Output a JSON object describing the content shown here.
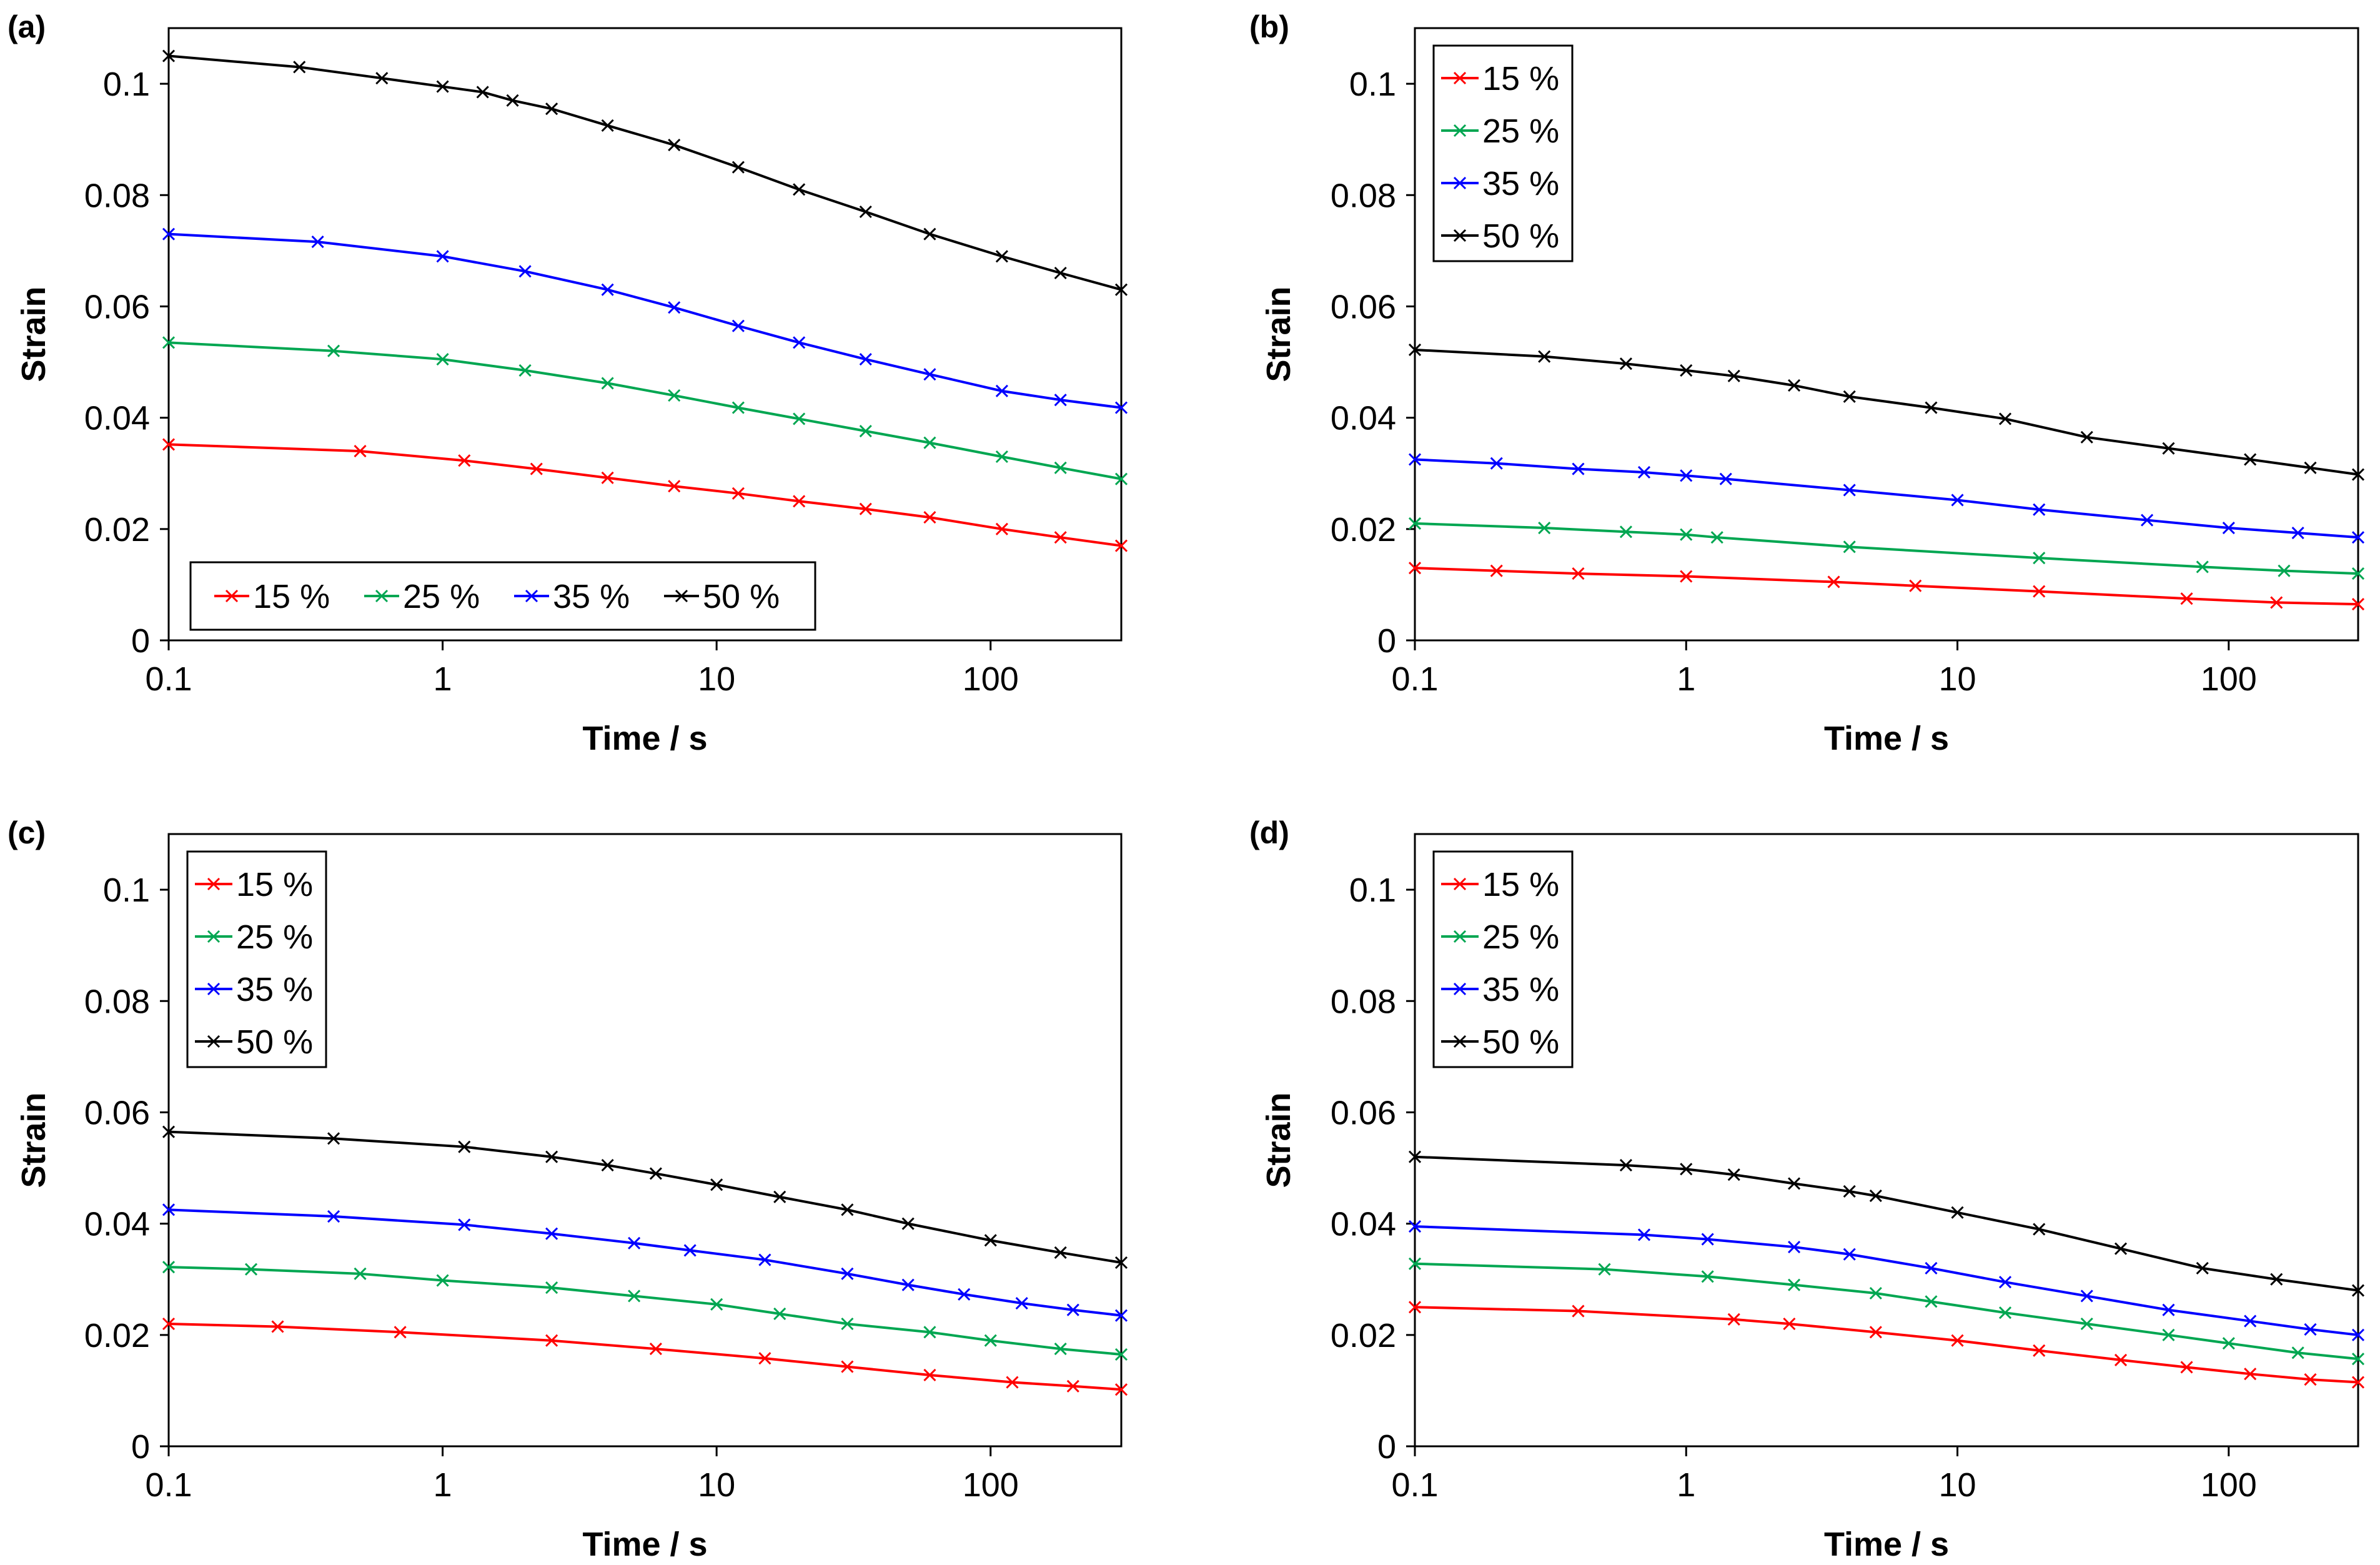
{
  "colors": {
    "15 %": "#ff0000",
    "25 %": "#00a651",
    "35 %": "#0000ff",
    "50 %": "#000000"
  },
  "chart_data": [
    {
      "type": "line",
      "panel_label": "(a)",
      "xlabel": "Time / s",
      "ylabel": "Strain",
      "x_scale": "log",
      "xlim": [
        0.1,
        300
      ],
      "ylim": [
        0,
        0.11
      ],
      "x_ticks": [
        "0.1",
        "1",
        "10",
        "100"
      ],
      "y_ticks": [
        "0",
        "0.02",
        "0.04",
        "0.06",
        "0.08",
        "0.1"
      ],
      "legend_position": "bottom-left",
      "legend_layout": "horizontal",
      "series": [
        {
          "name": "15 %",
          "color": "#ff0000",
          "x": [
            0.1,
            0.5,
            1.2,
            2.2,
            4,
            7,
            12,
            20,
            35,
            60,
            110,
            180,
            300
          ],
          "y": [
            0.0352,
            0.034,
            0.0323,
            0.0308,
            0.0292,
            0.0277,
            0.0264,
            0.025,
            0.0236,
            0.0221,
            0.02,
            0.0185,
            0.017
          ]
        },
        {
          "name": "25 %",
          "color": "#00a651",
          "x": [
            0.1,
            0.4,
            1,
            2,
            4,
            7,
            12,
            20,
            35,
            60,
            110,
            180,
            300
          ],
          "y": [
            0.0535,
            0.052,
            0.0505,
            0.0485,
            0.0462,
            0.044,
            0.0418,
            0.0398,
            0.0376,
            0.0355,
            0.033,
            0.031,
            0.029
          ]
        },
        {
          "name": "35 %",
          "color": "#0000ff",
          "x": [
            0.1,
            0.35,
            1,
            2,
            4,
            7,
            12,
            20,
            35,
            60,
            110,
            180,
            300
          ],
          "y": [
            0.073,
            0.0716,
            0.069,
            0.0663,
            0.063,
            0.0598,
            0.0565,
            0.0535,
            0.0505,
            0.0478,
            0.0448,
            0.0432,
            0.0418
          ]
        },
        {
          "name": "50 %",
          "color": "#000000",
          "x": [
            0.1,
            0.3,
            0.6,
            1,
            1.4,
            1.8,
            2.5,
            4,
            7,
            12,
            20,
            35,
            60,
            110,
            180,
            300
          ],
          "y": [
            0.105,
            0.103,
            0.101,
            0.0995,
            0.0985,
            0.097,
            0.0955,
            0.0925,
            0.089,
            0.085,
            0.081,
            0.077,
            0.073,
            0.069,
            0.066,
            0.063
          ]
        }
      ]
    },
    {
      "type": "line",
      "panel_label": "(b)",
      "xlabel": "Time / s",
      "ylabel": "Strain",
      "x_scale": "log",
      "xlim": [
        0.1,
        300
      ],
      "ylim": [
        0,
        0.11
      ],
      "x_ticks": [
        "0.1",
        "1",
        "10",
        "100"
      ],
      "y_ticks": [
        "0",
        "0.02",
        "0.04",
        "0.06",
        "0.08",
        "0.1"
      ],
      "legend_position": "top-left",
      "legend_layout": "vertical",
      "series": [
        {
          "name": "15 %",
          "color": "#ff0000",
          "x": [
            0.1,
            0.2,
            0.4,
            1,
            3.5,
            7,
            20,
            70,
            150,
            300
          ],
          "y": [
            0.013,
            0.0125,
            0.012,
            0.0115,
            0.0105,
            0.0098,
            0.0088,
            0.0075,
            0.0068,
            0.0065
          ]
        },
        {
          "name": "25 %",
          "color": "#00a651",
          "x": [
            0.1,
            0.3,
            0.6,
            1,
            1.3,
            4,
            20,
            80,
            160,
            300
          ],
          "y": [
            0.021,
            0.0202,
            0.0195,
            0.019,
            0.0185,
            0.0168,
            0.0148,
            0.0132,
            0.0125,
            0.012
          ]
        },
        {
          "name": "35 %",
          "color": "#0000ff",
          "x": [
            0.1,
            0.2,
            0.4,
            0.7,
            1,
            1.4,
            4,
            10,
            20,
            50,
            100,
            180,
            300
          ],
          "y": [
            0.0325,
            0.0318,
            0.0308,
            0.0302,
            0.0296,
            0.029,
            0.027,
            0.0252,
            0.0235,
            0.0216,
            0.0202,
            0.0193,
            0.0185
          ]
        },
        {
          "name": "50 %",
          "color": "#000000",
          "x": [
            0.1,
            0.3,
            0.6,
            1,
            1.5,
            2.5,
            4,
            8,
            15,
            30,
            60,
            120,
            200,
            300
          ],
          "y": [
            0.0522,
            0.051,
            0.0497,
            0.0485,
            0.0475,
            0.0458,
            0.0438,
            0.0418,
            0.0398,
            0.0365,
            0.0345,
            0.0325,
            0.031,
            0.0298
          ]
        }
      ]
    },
    {
      "type": "line",
      "panel_label": "(c)",
      "xlabel": "Time / s",
      "ylabel": "Strain",
      "x_scale": "log",
      "xlim": [
        0.1,
        300
      ],
      "ylim": [
        0,
        0.11
      ],
      "x_ticks": [
        "0.1",
        "1",
        "10",
        "100"
      ],
      "y_ticks": [
        "0",
        "0.02",
        "0.04",
        "0.06",
        "0.08",
        "0.1"
      ],
      "legend_position": "top-left",
      "legend_layout": "vertical",
      "series": [
        {
          "name": "15 %",
          "color": "#ff0000",
          "x": [
            0.1,
            0.25,
            0.7,
            2.5,
            6,
            15,
            30,
            60,
            120,
            200,
            300
          ],
          "y": [
            0.022,
            0.0215,
            0.0205,
            0.019,
            0.0175,
            0.0158,
            0.0143,
            0.0128,
            0.0115,
            0.0108,
            0.0102
          ]
        },
        {
          "name": "25 %",
          "color": "#00a651",
          "x": [
            0.1,
            0.2,
            0.5,
            1,
            2.5,
            5,
            10,
            17,
            30,
            60,
            100,
            180,
            300
          ],
          "y": [
            0.0322,
            0.0318,
            0.031,
            0.0298,
            0.0285,
            0.027,
            0.0255,
            0.0238,
            0.022,
            0.0205,
            0.019,
            0.0175,
            0.0165
          ]
        },
        {
          "name": "35 %",
          "color": "#0000ff",
          "x": [
            0.1,
            0.4,
            1.2,
            2.5,
            5,
            8,
            15,
            30,
            50,
            80,
            130,
            200,
            300
          ],
          "y": [
            0.0425,
            0.0413,
            0.0398,
            0.0382,
            0.0365,
            0.0352,
            0.0335,
            0.031,
            0.029,
            0.0273,
            0.0257,
            0.0245,
            0.0235
          ]
        },
        {
          "name": "50 %",
          "color": "#000000",
          "x": [
            0.1,
            0.4,
            1.2,
            2.5,
            4,
            6,
            10,
            17,
            30,
            50,
            100,
            180,
            300
          ],
          "y": [
            0.0565,
            0.0553,
            0.0538,
            0.052,
            0.0505,
            0.049,
            0.047,
            0.0448,
            0.0425,
            0.04,
            0.037,
            0.0348,
            0.033
          ]
        }
      ]
    },
    {
      "type": "line",
      "panel_label": "(d)",
      "xlabel": "Time / s",
      "ylabel": "Strain",
      "x_scale": "log",
      "xlim": [
        0.1,
        300
      ],
      "ylim": [
        0,
        0.11
      ],
      "x_ticks": [
        "0.1",
        "1",
        "10",
        "100"
      ],
      "y_ticks": [
        "0",
        "0.02",
        "0.04",
        "0.06",
        "0.08",
        "0.1"
      ],
      "legend_position": "top-left",
      "legend_layout": "vertical",
      "series": [
        {
          "name": "15 %",
          "color": "#ff0000",
          "x": [
            0.1,
            0.4,
            1.5,
            2.4,
            5,
            10,
            20,
            40,
            70,
            120,
            200,
            300
          ],
          "y": [
            0.025,
            0.0243,
            0.0228,
            0.022,
            0.0205,
            0.019,
            0.0172,
            0.0155,
            0.0142,
            0.013,
            0.012,
            0.0115
          ]
        },
        {
          "name": "25 %",
          "color": "#00a651",
          "x": [
            0.1,
            0.5,
            1.2,
            2.5,
            5,
            8,
            15,
            30,
            60,
            100,
            180,
            300
          ],
          "y": [
            0.0328,
            0.0318,
            0.0305,
            0.029,
            0.0275,
            0.026,
            0.024,
            0.022,
            0.02,
            0.0185,
            0.0168,
            0.0157
          ]
        },
        {
          "name": "35 %",
          "color": "#0000ff",
          "x": [
            0.1,
            0.7,
            1.2,
            2.5,
            4,
            8,
            15,
            30,
            60,
            120,
            200,
            300
          ],
          "y": [
            0.0395,
            0.038,
            0.0372,
            0.0358,
            0.0345,
            0.032,
            0.0295,
            0.027,
            0.0245,
            0.0225,
            0.021,
            0.02
          ]
        },
        {
          "name": "50 %",
          "color": "#000000",
          "x": [
            0.1,
            0.6,
            1,
            1.5,
            2.5,
            4,
            5,
            10,
            20,
            40,
            80,
            150,
            300
          ],
          "y": [
            0.052,
            0.0505,
            0.0498,
            0.0488,
            0.0472,
            0.0458,
            0.045,
            0.042,
            0.039,
            0.0355,
            0.032,
            0.03,
            0.028
          ]
        }
      ]
    }
  ]
}
